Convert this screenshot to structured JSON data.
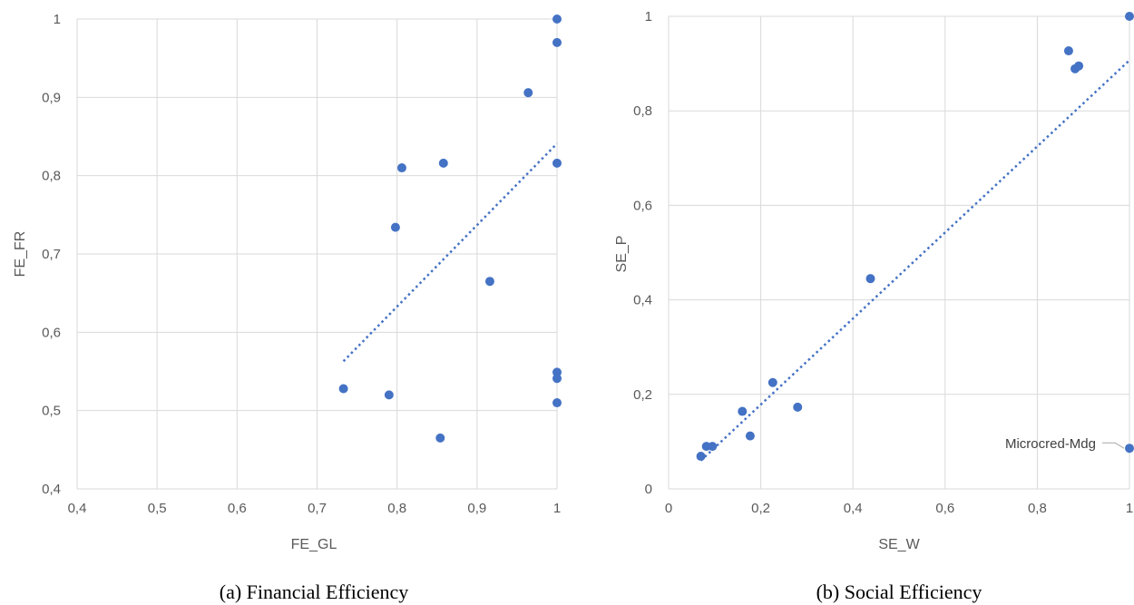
{
  "colors": {
    "marker": "#4472c4",
    "grid": "#d9d9d9",
    "text": "#595959"
  },
  "chart_data": [
    {
      "type": "scatter",
      "caption": "(a) Financial Efficiency",
      "xlabel": "FE_GL",
      "ylabel": "FE_FR",
      "xlim": [
        0.4,
        1
      ],
      "ylim": [
        0.4,
        1
      ],
      "xticks": [
        "0,4",
        "0,5",
        "0,6",
        "0,7",
        "0,8",
        "0,9",
        "1"
      ],
      "yticks": [
        "0,4",
        "0,5",
        "0,6",
        "0,7",
        "0,8",
        "0,9",
        "1"
      ],
      "grid": true,
      "points": [
        {
          "x": 0.733,
          "y": 0.528
        },
        {
          "x": 0.79,
          "y": 0.52
        },
        {
          "x": 0.798,
          "y": 0.734
        },
        {
          "x": 0.806,
          "y": 0.81
        },
        {
          "x": 0.854,
          "y": 0.465
        },
        {
          "x": 0.858,
          "y": 0.816
        },
        {
          "x": 0.916,
          "y": 0.665
        },
        {
          "x": 0.964,
          "y": 0.906
        },
        {
          "x": 1.0,
          "y": 1.0
        },
        {
          "x": 1.0,
          "y": 0.97
        },
        {
          "x": 1.0,
          "y": 0.816
        },
        {
          "x": 1.0,
          "y": 0.549
        },
        {
          "x": 1.0,
          "y": 0.541
        },
        {
          "x": 1.0,
          "y": 0.51
        }
      ],
      "trendline": {
        "x": [
          0.733,
          1.0
        ],
        "y": [
          0.563,
          0.841
        ]
      }
    },
    {
      "type": "scatter",
      "caption": "(b) Social Efficiency",
      "xlabel": "SE_W",
      "ylabel": "SE_P",
      "xlim": [
        0,
        1
      ],
      "ylim": [
        0,
        1
      ],
      "xticks": [
        "0",
        "0,2",
        "0,4",
        "0,6",
        "0,8",
        "1"
      ],
      "yticks": [
        "0",
        "0,2",
        "0,4",
        "0,6",
        "0,8",
        "1"
      ],
      "grid": true,
      "points": [
        {
          "x": 0.07,
          "y": 0.069
        },
        {
          "x": 0.082,
          "y": 0.09
        },
        {
          "x": 0.095,
          "y": 0.09
        },
        {
          "x": 0.16,
          "y": 0.164
        },
        {
          "x": 0.177,
          "y": 0.112
        },
        {
          "x": 0.226,
          "y": 0.225
        },
        {
          "x": 0.28,
          "y": 0.173
        },
        {
          "x": 0.438,
          "y": 0.445
        },
        {
          "x": 0.868,
          "y": 0.927
        },
        {
          "x": 0.882,
          "y": 0.889
        },
        {
          "x": 0.89,
          "y": 0.895
        },
        {
          "x": 1.0,
          "y": 1.0
        },
        {
          "x": 1.0,
          "y": 0.086
        }
      ],
      "annotation": {
        "text": "Microcred-Mdg",
        "x": 1.0,
        "y": 0.086
      },
      "trendline": {
        "x": [
          0.07,
          1.0
        ],
        "y": [
          0.06,
          0.907
        ]
      }
    }
  ]
}
